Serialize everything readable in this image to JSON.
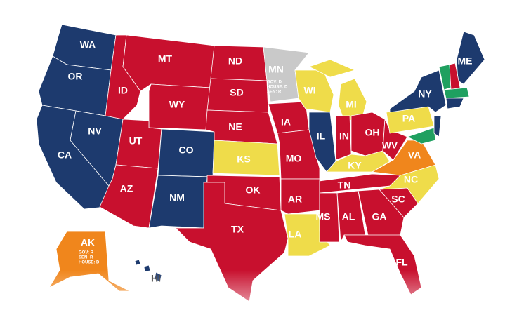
{
  "states": [
    {
      "label": "WA",
      "color": "#1d3a6e"
    },
    {
      "label": "OR",
      "color": "#1d3a6e"
    },
    {
      "label": "CA",
      "color": "#1d3a6e"
    },
    {
      "label": "NV",
      "color": "#1d3a6e"
    },
    {
      "label": "ID",
      "color": "#c8102e"
    },
    {
      "label": "MT",
      "color": "#c8102e"
    },
    {
      "label": "WY",
      "color": "#c8102e"
    },
    {
      "label": "UT",
      "color": "#c8102e"
    },
    {
      "label": "AZ",
      "color": "#c8102e"
    },
    {
      "label": "CO",
      "color": "#1d3a6e"
    },
    {
      "label": "NM",
      "color": "#1d3a6e"
    },
    {
      "label": "ND",
      "color": "#c8102e"
    },
    {
      "label": "SD",
      "color": "#c8102e"
    },
    {
      "label": "NE",
      "color": "#c8102e"
    },
    {
      "label": "KS",
      "color": "#efdc4a"
    },
    {
      "label": "OK",
      "color": "#c8102e"
    },
    {
      "label": "TX",
      "color": "#c8102e"
    },
    {
      "label": "MN",
      "color": "#c9c9c9",
      "notes": [
        "GOV: D",
        "HOUSE: D",
        "SEN: R"
      ]
    },
    {
      "label": "IA",
      "color": "#c8102e"
    },
    {
      "label": "MO",
      "color": "#c8102e"
    },
    {
      "label": "AR",
      "color": "#c8102e"
    },
    {
      "label": "LA",
      "color": "#efdc4a"
    },
    {
      "label": "WI",
      "color": "#efdc4a"
    },
    {
      "label": "IL",
      "color": "#1d3a6e"
    },
    {
      "label": "MI",
      "color": "#efdc4a"
    },
    {
      "label": "IN",
      "color": "#c8102e"
    },
    {
      "label": "OH",
      "color": "#c8102e"
    },
    {
      "label": "KY",
      "color": "#efdc4a"
    },
    {
      "label": "TN",
      "color": "#c8102e"
    },
    {
      "label": "MS",
      "color": "#c8102e"
    },
    {
      "label": "AL",
      "color": "#c8102e"
    },
    {
      "label": "GA",
      "color": "#c8102e"
    },
    {
      "label": "FL",
      "color": "#c8102e"
    },
    {
      "label": "SC",
      "color": "#c8102e"
    },
    {
      "label": "NC",
      "color": "#efdc4a"
    },
    {
      "label": "VA",
      "color": "#f0861c"
    },
    {
      "label": "WV",
      "color": "#c8102e"
    },
    {
      "label": "PA",
      "color": "#efdc4a"
    },
    {
      "label": "NY",
      "color": "#1d3a6e"
    },
    {
      "label": "ME",
      "color": "#1d3a6e"
    },
    {
      "label": "AK",
      "color": "#f0861c",
      "notes": [
        "GOV: R",
        "SEN: R",
        "HOUSE: D"
      ]
    },
    {
      "label": "HI",
      "color": "#1d3a6e"
    }
  ]
}
